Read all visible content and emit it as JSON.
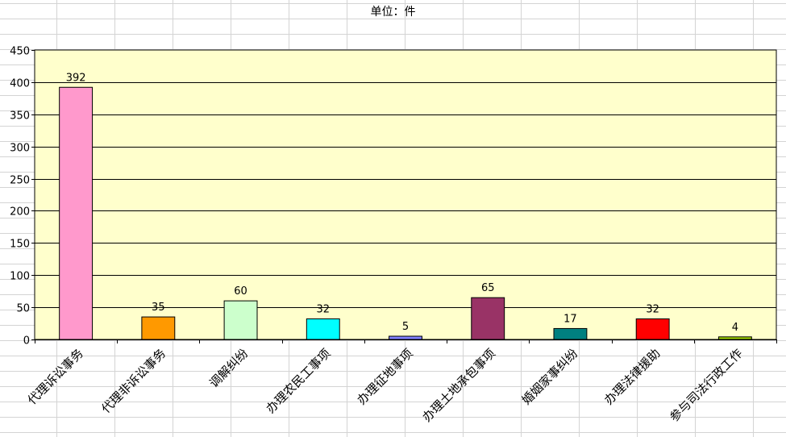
{
  "chart_data": {
    "type": "bar",
    "title": "单位：件",
    "categories": [
      "代理诉讼事务",
      "代理非诉讼事务",
      "调解纠纷",
      "办理农民工事项",
      "办理征地事项",
      "办理土地承包事项",
      "婚姻家事纠纷",
      "办理法律援助",
      "参与司法行政工作"
    ],
    "values": [
      392,
      35,
      60,
      32,
      5,
      65,
      17,
      32,
      4
    ],
    "colors": [
      "#ff99cc",
      "#ff9900",
      "#ccffcc",
      "#00ffff",
      "#8080ff",
      "#993366",
      "#008080",
      "#ff0000",
      "#99cc00"
    ],
    "ylim": [
      0,
      450
    ],
    "yticks": [
      0,
      50,
      100,
      150,
      200,
      250,
      300,
      350,
      400,
      450
    ],
    "plot_background": "#ffffcc",
    "grid": true,
    "legend": false,
    "data_labels": true
  }
}
